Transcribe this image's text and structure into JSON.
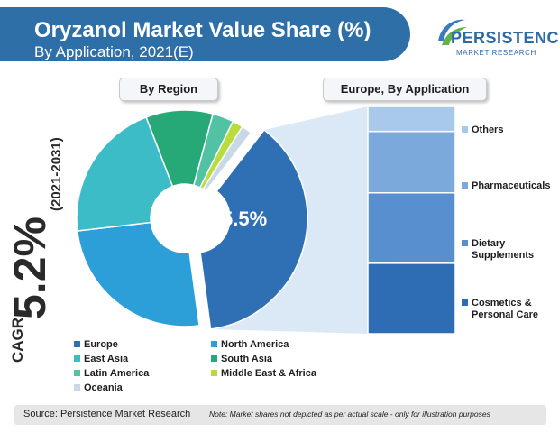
{
  "header": {
    "title": "Oryzanol Market Value Share (%)",
    "subtitle": "By Application, 2021(E)"
  },
  "logo": {
    "name": "PERSISTENCE",
    "tagline": "MARKET RESEARCH"
  },
  "cagr": {
    "prefix": "CAGR",
    "value": "5.2%",
    "period": "(2021-2031)"
  },
  "region_label": "By Region",
  "europe_label": "Europe, By Application",
  "chart_data": [
    {
      "type": "pie",
      "title": "By Region",
      "donut": true,
      "highlight_label": "35.5%",
      "categories": [
        "Europe",
        "North America",
        "East Asia",
        "South Asia",
        "Latin America",
        "Middle East & Africa",
        "Oceania"
      ],
      "values": [
        35.5,
        24,
        20,
        9.5,
        3,
        1.5,
        1.5
      ],
      "colors": [
        "#2f6fb4",
        "#2c9fd8",
        "#3cbcc6",
        "#27a877",
        "#52c2a5",
        "#b8dc3c",
        "#c9d8e6"
      ]
    },
    {
      "type": "bar",
      "stacked": true,
      "title": "Europe, By Application",
      "categories": [
        "Others",
        "Pharmaceuticals",
        "Dietary Supplements",
        "Cosmetics & Personal Care"
      ],
      "values": [
        11,
        27,
        31,
        31
      ],
      "colors": [
        "#a9c9ea",
        "#7ca9dc",
        "#5890cf",
        "#2e6db3"
      ]
    }
  ],
  "legend": [
    {
      "label": "Europe",
      "color": "#2f6fb4"
    },
    {
      "label": "North America",
      "color": "#2c9fd8"
    },
    {
      "label": "East Asia",
      "color": "#3cbcc6"
    },
    {
      "label": "South Asia",
      "color": "#27a877"
    },
    {
      "label": "Latin America",
      "color": "#52c2a5"
    },
    {
      "label": "Middle East & Africa",
      "color": "#b8dc3c"
    },
    {
      "label": "Oceania",
      "color": "#c9d8e6"
    }
  ],
  "bar_labels": [
    {
      "lines": [
        "Others"
      ],
      "color": "#a9c9ea"
    },
    {
      "lines": [
        "Pharmaceuticals"
      ],
      "color": "#7ca9dc"
    },
    {
      "lines": [
        "Dietary",
        "Supplements"
      ],
      "color": "#5890cf"
    },
    {
      "lines": [
        "Cosmetics &",
        "Personal Care"
      ],
      "color": "#2e6db3"
    }
  ],
  "footer": {
    "source": "Source: Persistence Market Research",
    "note": "Note: Market shares not depicted as per actual scale - only for illustration purposes"
  }
}
